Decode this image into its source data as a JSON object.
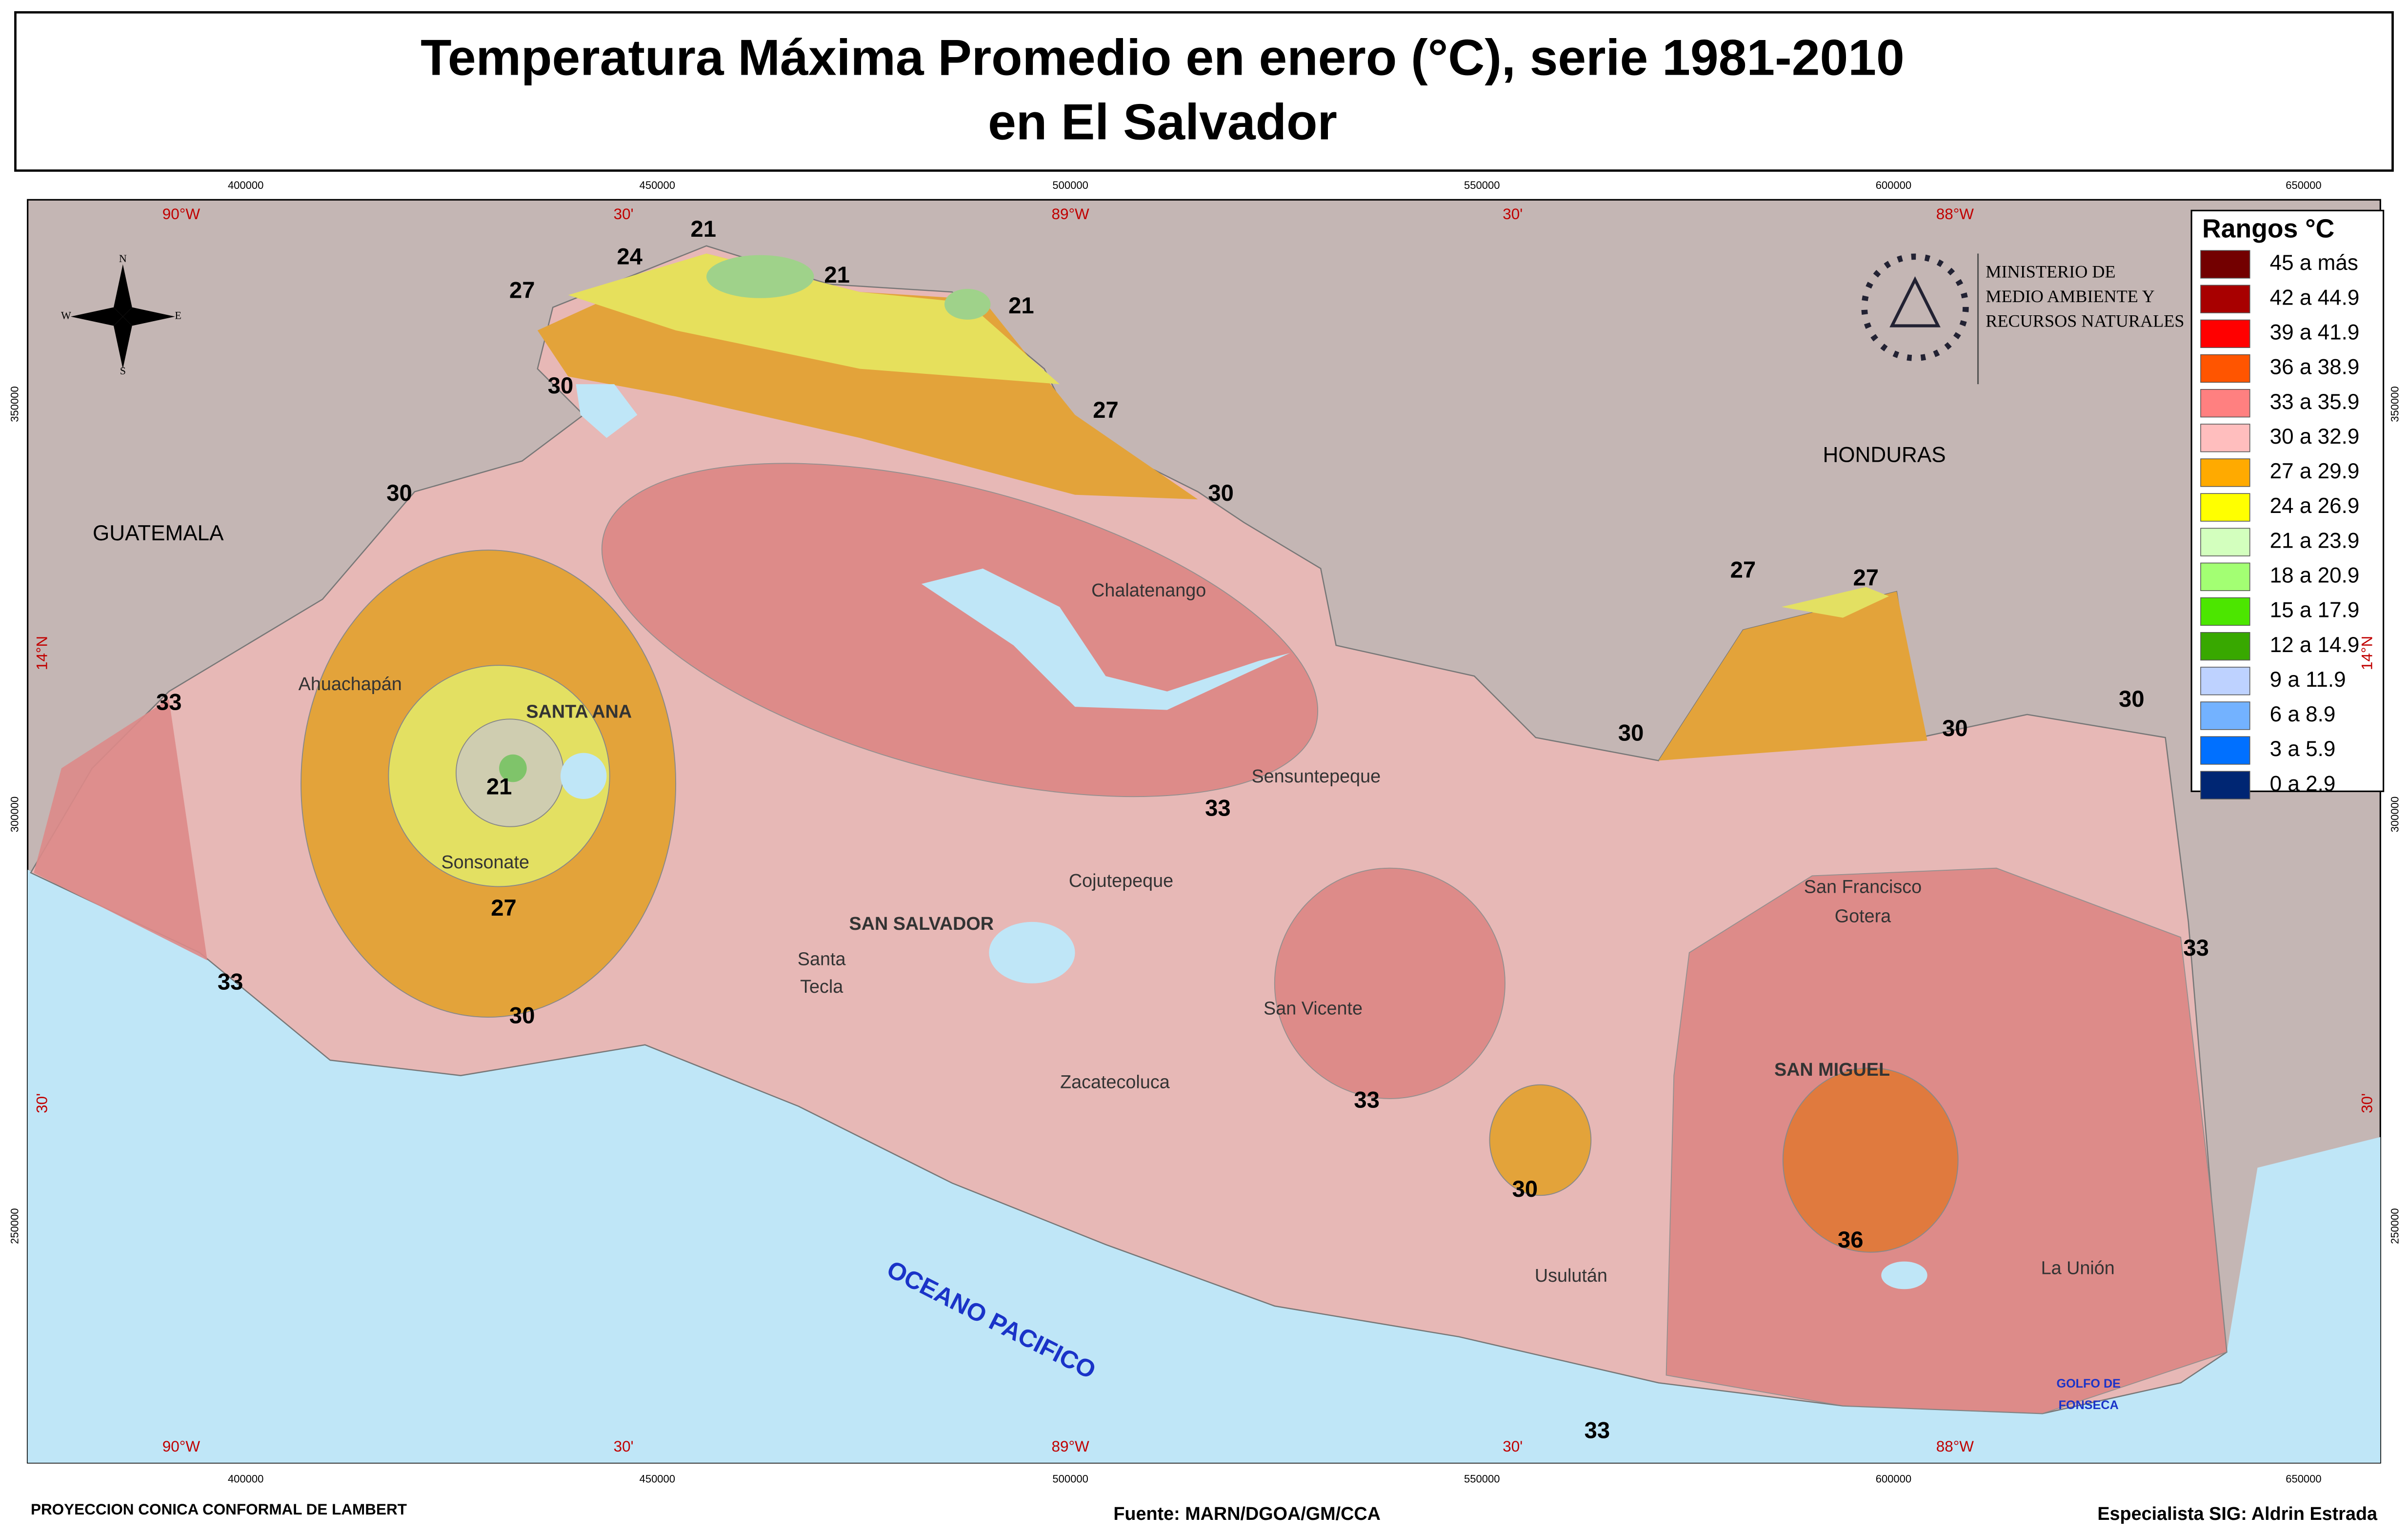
{
  "title": [
    "Temperatura Máxima Promedio en enero (°C), serie 1981-2010",
    "en El Salvador"
  ],
  "legend": {
    "title": "Rangos °C",
    "items": [
      {
        "label": "45 a más",
        "color": "#730000"
      },
      {
        "label": "42 a 44.9",
        "color": "#a80000"
      },
      {
        "label": "39 a 41.9",
        "color": "#ff0000"
      },
      {
        "label": "36 a 38.9",
        "color": "#ff5500"
      },
      {
        "label": "33 a 35.9",
        "color": "#ff8080"
      },
      {
        "label": "30 a 32.9",
        "color": "#ffbebe"
      },
      {
        "label": "27 a 29.9",
        "color": "#ffaa00"
      },
      {
        "label": "24 a 26.9",
        "color": "#ffff00"
      },
      {
        "label": "21 a 23.9",
        "color": "#d3ffbe"
      },
      {
        "label": "18 a 20.9",
        "color": "#a3ff73"
      },
      {
        "label": "15 a 17.9",
        "color": "#4ce600"
      },
      {
        "label": "12 a 14.9",
        "color": "#38a800"
      },
      {
        "label": "9 a 11.9",
        "color": "#bed2ff"
      },
      {
        "label": "6 a 8.9",
        "color": "#73b2ff"
      },
      {
        "label": "3 a 5.9",
        "color": "#0070ff"
      },
      {
        "label": "0 a 2.9",
        "color": "#002673"
      }
    ]
  },
  "ministry": [
    "MINISTERIO DE",
    "MEDIO AMBIENTE Y",
    "RECURSOS NATURALES"
  ],
  "compass": [
    "N",
    "S",
    "E",
    "W"
  ],
  "countries": [
    "GUATEMALA",
    "HONDURAS"
  ],
  "ocean": "OCEANO PACIFICO",
  "gulf": [
    "GOLFO DE",
    "FONSECA"
  ],
  "places": [
    "Ahuachapán",
    "SANTA ANA",
    "Sonsonate",
    "Chalatenango",
    "Sensuntepeque",
    "Cojutepeque",
    "SAN SALVADOR",
    "Santa",
    "Tecla",
    "San Vicente",
    "Zacatecoluca",
    "San Francisco",
    "Gotera",
    "SAN MIGUEL",
    "Usulután",
    "La Unión"
  ],
  "isotherm_labels": [
    24,
    21,
    21,
    21,
    27,
    30,
    27,
    30,
    30,
    33,
    21,
    27,
    30,
    33,
    33,
    33,
    30,
    36,
    33,
    27,
    27,
    30,
    30,
    30,
    33
  ],
  "eastings": [
    400000,
    450000,
    500000,
    550000,
    600000,
    650000
  ],
  "northings": [
    350000,
    300000,
    250000
  ],
  "longitudes": [
    "90°W",
    "30'",
    "89°W",
    "30'",
    "88°W"
  ],
  "latitudes": [
    "14°N",
    "30'"
  ],
  "footer": {
    "projection": "PROYECCION CONICA CONFORMAL DE LAMBERT",
    "source": "Fuente: MARN/DGOA/GM/CCA",
    "specialist": "Especialista SIG: Aldrin Estrada"
  }
}
